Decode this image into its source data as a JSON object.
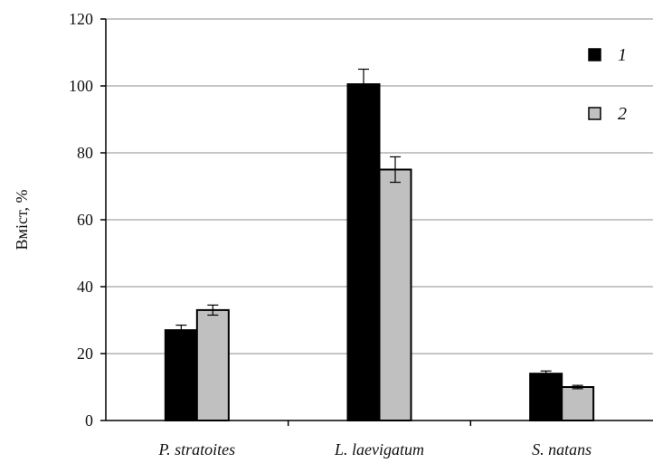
{
  "chart_data": {
    "type": "bar",
    "title": "",
    "xlabel": "",
    "ylabel": "Вміст, %",
    "ylim": [
      0,
      120
    ],
    "yticks": [
      0,
      20,
      40,
      60,
      80,
      100,
      120
    ],
    "grid": true,
    "legend_position": "top-right",
    "categories": [
      "P. stratoites",
      "L. laevigatum",
      "S. natans"
    ],
    "series": [
      {
        "name": "1",
        "color": "#000000",
        "values": [
          27,
          100.5,
          14
        ],
        "errors": [
          1.5,
          4.5,
          0.8
        ]
      },
      {
        "name": "2",
        "color": "#c0c0c0",
        "values": [
          33,
          75,
          10
        ],
        "errors": [
          1.5,
          3.8,
          0.5
        ]
      }
    ]
  }
}
